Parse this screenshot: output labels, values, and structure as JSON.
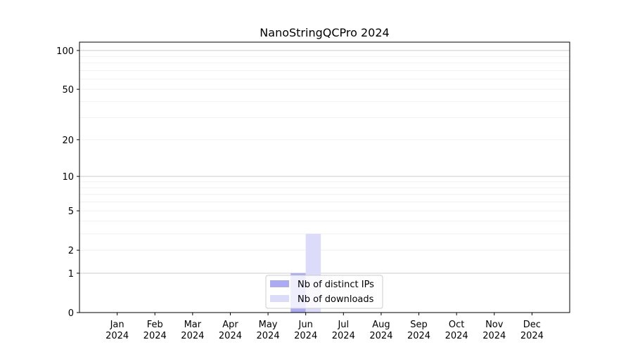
{
  "chart_data": {
    "type": "bar",
    "title": "NanoStringQCPro 2024",
    "xlabel": "",
    "ylabel": "",
    "categories": [
      "Jan\n2024",
      "Feb\n2024",
      "Mar\n2024",
      "Apr\n2024",
      "May\n2024",
      "Jun\n2024",
      "Jul\n2024",
      "Aug\n2024",
      "Sep\n2024",
      "Oct\n2024",
      "Nov\n2024",
      "Dec\n2024"
    ],
    "series": [
      {
        "name": "Nb of distinct IPs",
        "values": [
          0,
          0,
          0,
          0,
          0,
          1,
          0,
          0,
          0,
          0,
          0,
          0
        ],
        "color": "#aaaaf5"
      },
      {
        "name": "Nb of downloads",
        "values": [
          0,
          0,
          0,
          0,
          0,
          3,
          0,
          0,
          0,
          0,
          0,
          0
        ],
        "color": "#dcdcfa"
      }
    ],
    "y_scale": "log(1+y)",
    "yticks": [
      0,
      1,
      2,
      5,
      10,
      20,
      50,
      100
    ],
    "ylim": [
      0,
      116
    ],
    "grid": true,
    "legend": "bottom-center"
  }
}
